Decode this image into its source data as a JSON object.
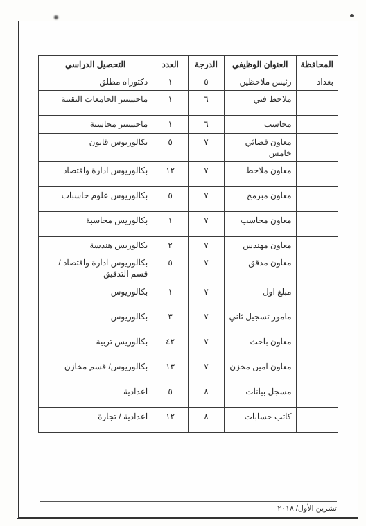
{
  "headers": {
    "governorate": "المحافظة",
    "job_title": "العنوان الوظيفي",
    "grade": "الدرجة",
    "count": "العدد",
    "education": "التحصيل الدراسي"
  },
  "rows": [
    {
      "gov": "بغداد",
      "title": "رئيس ملاحظين",
      "grade": "٥",
      "count": "١",
      "edu": "دكتوراه مطلق"
    },
    {
      "gov": "",
      "title": "ملاحظ فني",
      "grade": "٦",
      "count": "١",
      "edu": "ماجستير الجامعات التقنية"
    },
    {
      "gov": "",
      "title": "محاسب",
      "grade": "٦",
      "count": "١",
      "edu": "ماجستير محاسبة"
    },
    {
      "gov": "",
      "title": "معاون قضائي خامس",
      "grade": "٧",
      "count": "٥",
      "edu": "بكالوريوس قانون"
    },
    {
      "gov": "",
      "title": "معاون ملاحظ",
      "grade": "٧",
      "count": "١٢",
      "edu": "بكالوريوس ادارة واقتصاد"
    },
    {
      "gov": "",
      "title": "معاون مبرمج",
      "grade": "٧",
      "count": "٥",
      "edu": "بكالوريوس علوم حاسبات"
    },
    {
      "gov": "",
      "title": "معاون محاسب",
      "grade": "٧",
      "count": "١",
      "edu": "بكالوريس محاسبة"
    },
    {
      "gov": "",
      "title": "معاون مهندس",
      "grade": "٧",
      "count": "٢",
      "edu": "بكالوريس هندسة"
    },
    {
      "gov": "",
      "title": "معاون مدقق",
      "grade": "٧",
      "count": "٥",
      "edu": "بكالوريوس ادارة واقتصاد / قسم التدقيق"
    },
    {
      "gov": "",
      "title": "مبلغ اول",
      "grade": "٧",
      "count": "١",
      "edu": "بكالوريوس"
    },
    {
      "gov": "",
      "title": "مامور تسجيل ثاني",
      "grade": "٧",
      "count": "٣",
      "edu": "بكالوريوس"
    },
    {
      "gov": "",
      "title": "معاون باحث",
      "grade": "٧",
      "count": "٤٢",
      "edu": "بكالوريس تربية"
    },
    {
      "gov": "",
      "title": "معاون امين مخزن",
      "grade": "٧",
      "count": "١٣",
      "edu": "بكالوريوس/ قسم مخازن"
    },
    {
      "gov": "",
      "title": "مسجل بيانات",
      "grade": "٨",
      "count": "٥",
      "edu": "اعدادية"
    },
    {
      "gov": "",
      "title": "كاتب حسابات",
      "grade": "٨",
      "count": "١٢",
      "edu": "اعدادية / تجارة"
    }
  ],
  "row_heights_tall": [
    1,
    3,
    4,
    5,
    6,
    8,
    9,
    10,
    11,
    12,
    13,
    14
  ],
  "footer": "تشرين الأول/ ٢٠١٨"
}
